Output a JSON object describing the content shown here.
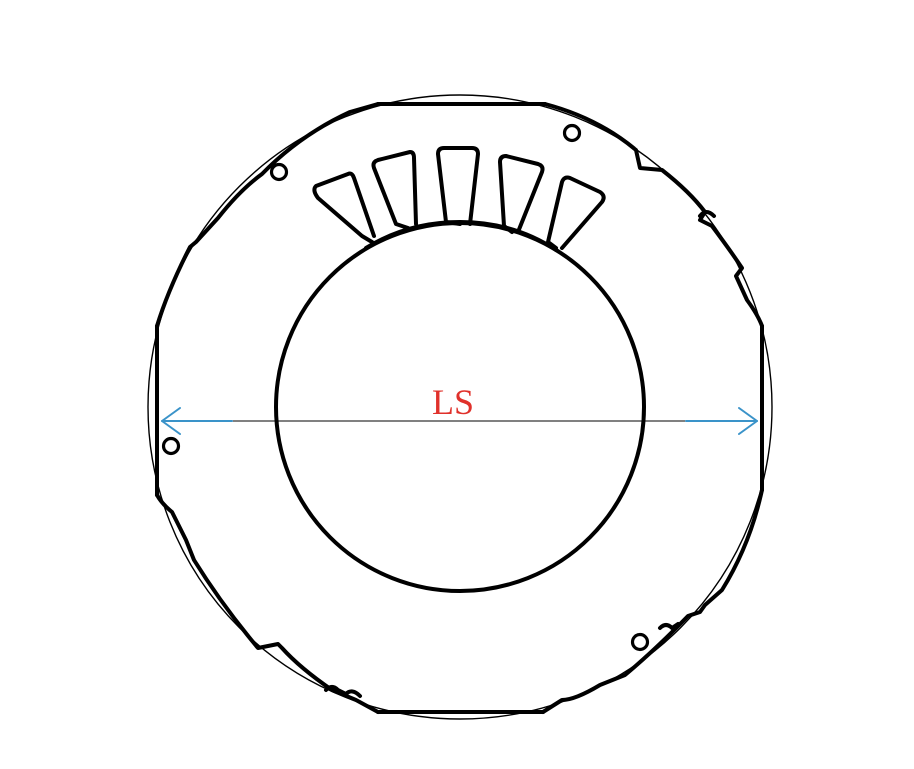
{
  "diagram": {
    "dimension_label": "LS",
    "colors": {
      "outline": "#000000",
      "dimension_arrow": "#3a93c9",
      "dimension_label": "#e0312b",
      "background": "#ffffff"
    },
    "parts": {
      "outer_ring": "stator-lamination-outer-edge",
      "bore": "stator-bore",
      "slot_count_shown": 5,
      "mounting_hole_count": 4
    }
  }
}
